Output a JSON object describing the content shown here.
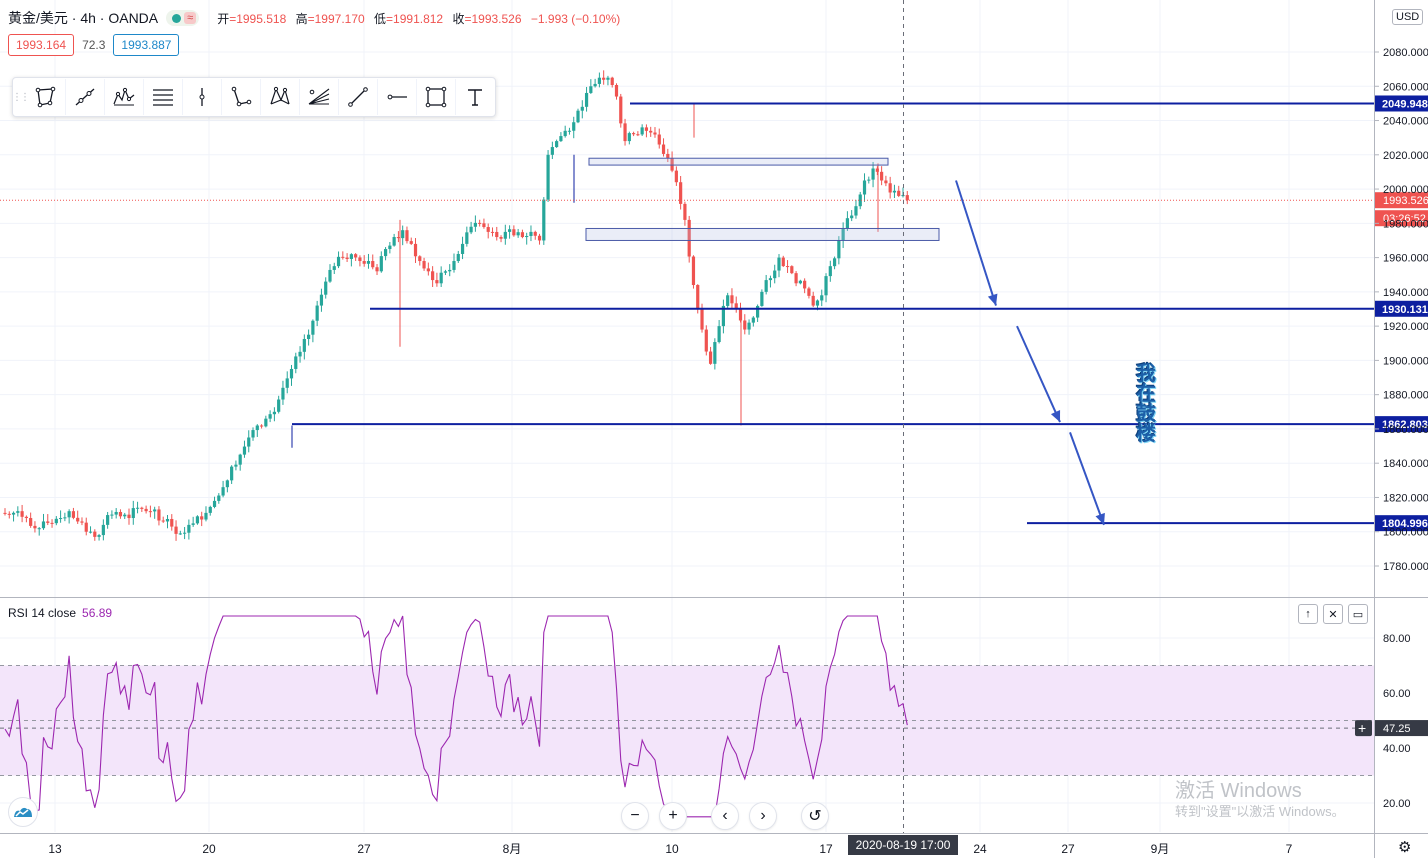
{
  "header": {
    "symbol": "黄金/美元 · 4h · OANDA",
    "eq": "≈",
    "open_label": "开",
    "open": "=1995.518",
    "high_label": "高",
    "high": "=1997.170",
    "low_label": "低",
    "low": "=1991.812",
    "close_label": "收",
    "close": "=1993.526",
    "change": "−1.993 (−0.10%)"
  },
  "quote": {
    "bid": "1993.164",
    "spread": "72.3",
    "ask": "1993.887"
  },
  "currency": "USD",
  "toolbar_icons": [
    "polygon-icon",
    "line-icon",
    "pattern-icon",
    "fib-icon",
    "vertical-line-icon",
    "triangle-icon",
    "xabcd-icon",
    "pitchfork-icon",
    "trend-line-icon",
    "horizontal-ray-icon",
    "rectangle-icon",
    "text-icon"
  ],
  "rsi": {
    "label": "RSI 14 close",
    "value": "56.89",
    "right_value": "47.25",
    "ylim": [
      10,
      97
    ],
    "ticks": [
      "80.00",
      "60.00",
      "40.00",
      "20.00"
    ]
  },
  "price_labels": {
    "last": "1993.526",
    "countdown": "03:26:52",
    "levels": [
      "2049.948",
      "1930.131",
      "1862.803",
      "1804.996"
    ]
  },
  "vertical_text": [
    "我",
    "在",
    "鼓",
    "楼"
  ],
  "crosshair_time": "2020-08-19 17:00",
  "watermark": {
    "line1": "激活 Windows",
    "line2": "转到\"设置\"以激活 Windows。"
  },
  "nav_buttons": [
    "−",
    "+",
    "‹",
    "›",
    "↺"
  ],
  "chart_data": {
    "type": "candlestick",
    "symbol": "XAU/USD",
    "interval": "4h",
    "ylim": [
      1765,
      2100
    ],
    "y_ticks": [
      "2080.000",
      "2060.000",
      "2040.000",
      "2020.000",
      "2000.000",
      "1980.000",
      "1960.000",
      "1940.000",
      "1920.000",
      "1900.000",
      "1880.000",
      "1860.000",
      "1840.000",
      "1820.000",
      "1800.000",
      "1780.000"
    ],
    "x_ticks": [
      "13",
      "20",
      "27",
      "8月",
      "10",
      "17",
      "24",
      "27",
      "9月",
      "7"
    ],
    "close_path": [
      1810,
      1812,
      1808,
      1802,
      1806,
      1805,
      1808,
      1812,
      1806,
      1800,
      1797,
      1804,
      1810,
      1809,
      1808,
      1814,
      1812,
      1813,
      1806,
      1803,
      1799,
      1804,
      1809,
      1811,
      1818,
      1826,
      1838,
      1845,
      1855,
      1862,
      1866,
      1870,
      1884,
      1895,
      1905,
      1915,
      1932,
      1946,
      1955,
      1960,
      1962,
      1958,
      1958,
      1952,
      1965,
      1972,
      1976,
      1968,
      1958,
      1952,
      1945,
      1952,
      1958,
      1968,
      1978,
      1980,
      1975,
      1972,
      1975,
      1973,
      1972,
      1975,
      1970,
      2020,
      2028,
      2034,
      2039,
      2048,
      2060,
      2065,
      2065,
      2054,
      2028,
      2032,
      2036,
      2033,
      2026,
      2018,
      2004,
      1982,
      1944,
      1918,
      1898,
      1920,
      1938,
      1930,
      1918,
      1925,
      1940,
      1948,
      1960,
      1955,
      1945,
      1942,
      1932,
      1938,
      1955,
      1970,
      1983,
      1990,
      2005,
      2012,
      2005,
      1998,
      1996,
      1993.5
    ],
    "key_levels": [
      2049.948,
      1930.131,
      1862.803,
      1804.996
    ],
    "zones": [
      [
        2018,
        2014
      ],
      [
        1977,
        1970
      ]
    ],
    "projection_arrows": [
      [
        2005,
        1932
      ],
      [
        1920,
        1864
      ],
      [
        1858,
        1804
      ]
    ]
  }
}
